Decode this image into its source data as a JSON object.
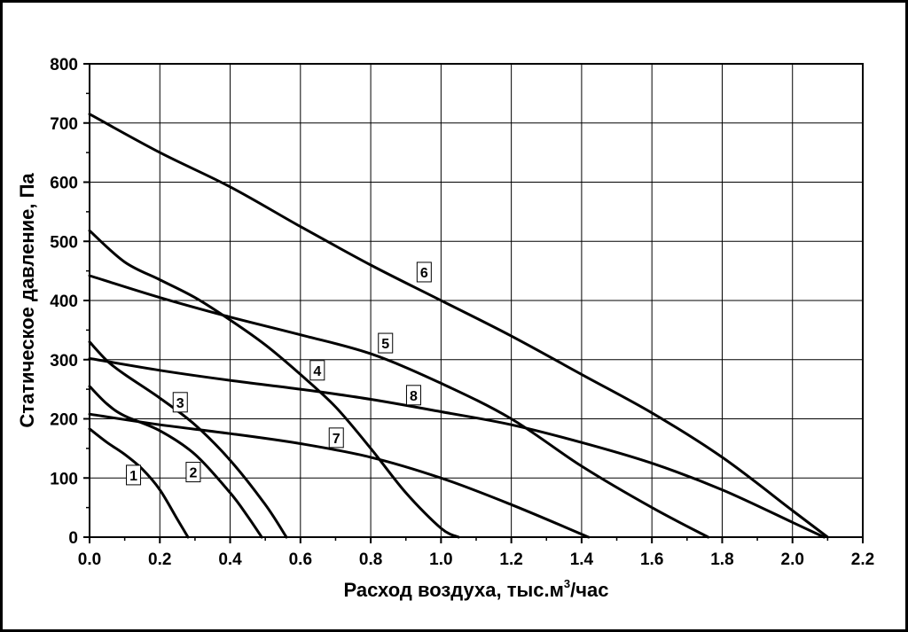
{
  "chart_data": {
    "type": "line",
    "title": "",
    "xlabel": "Расход воздуха, тыс.м³/час",
    "xlabel_main": "Расход воздуха, тыс.м",
    "xlabel_sup": "3",
    "xlabel_tail": "/час",
    "ylabel": "Статическое давление, Па",
    "xlim": [
      0,
      2.2
    ],
    "ylim": [
      0,
      800
    ],
    "xticks": [
      0.0,
      0.2,
      0.4,
      0.6,
      0.8,
      1.0,
      1.2,
      1.4,
      1.6,
      1.8,
      2.0,
      2.2
    ],
    "xtick_labels": [
      "0.0",
      "0.2",
      "0.4",
      "0.6",
      "0.8",
      "1.0",
      "1.2",
      "1.4",
      "1.6",
      "1.8",
      "2.0",
      "2.2"
    ],
    "yticks": [
      0,
      100,
      200,
      300,
      400,
      500,
      600,
      700,
      800
    ],
    "ytick_labels": [
      "0",
      "100",
      "200",
      "300",
      "400",
      "500",
      "600",
      "700",
      "800"
    ],
    "grid": true,
    "legend": "none",
    "series": [
      {
        "name": "1",
        "label_at": [
          0.125,
          105
        ],
        "points": [
          [
            0,
            183
          ],
          [
            0.05,
            160
          ],
          [
            0.1,
            140
          ],
          [
            0.15,
            115
          ],
          [
            0.2,
            80
          ],
          [
            0.25,
            30
          ],
          [
            0.28,
            0
          ]
        ]
      },
      {
        "name": "2",
        "label_at": [
          0.295,
          110
        ],
        "points": [
          [
            0,
            255
          ],
          [
            0.05,
            225
          ],
          [
            0.1,
            205
          ],
          [
            0.2,
            180
          ],
          [
            0.3,
            140
          ],
          [
            0.4,
            75
          ],
          [
            0.45,
            35
          ],
          [
            0.49,
            0
          ]
        ]
      },
      {
        "name": "3",
        "label_at": [
          0.258,
          228
        ],
        "points": [
          [
            0,
            330
          ],
          [
            0.05,
            298
          ],
          [
            0.1,
            275
          ],
          [
            0.2,
            235
          ],
          [
            0.3,
            190
          ],
          [
            0.4,
            130
          ],
          [
            0.5,
            55
          ],
          [
            0.56,
            0
          ]
        ]
      },
      {
        "name": "4",
        "label_at": [
          0.648,
          282
        ],
        "points": [
          [
            0,
            518
          ],
          [
            0.1,
            465
          ],
          [
            0.2,
            435
          ],
          [
            0.3,
            405
          ],
          [
            0.4,
            367
          ],
          [
            0.5,
            325
          ],
          [
            0.6,
            275
          ],
          [
            0.7,
            220
          ],
          [
            0.8,
            150
          ],
          [
            0.9,
            75
          ],
          [
            1.0,
            15
          ],
          [
            1.05,
            0
          ]
        ]
      },
      {
        "name": "5",
        "label_at": [
          0.842,
          328
        ],
        "points": [
          [
            0,
            442
          ],
          [
            0.2,
            405
          ],
          [
            0.4,
            372
          ],
          [
            0.6,
            342
          ],
          [
            0.8,
            310
          ],
          [
            1.0,
            260
          ],
          [
            1.2,
            200
          ],
          [
            1.4,
            120
          ],
          [
            1.6,
            50
          ],
          [
            1.76,
            0
          ]
        ]
      },
      {
        "name": "6",
        "label_at": [
          0.952,
          448
        ],
        "points": [
          [
            0,
            715
          ],
          [
            0.2,
            650
          ],
          [
            0.4,
            592
          ],
          [
            0.6,
            525
          ],
          [
            0.8,
            460
          ],
          [
            1.0,
            400
          ],
          [
            1.2,
            340
          ],
          [
            1.4,
            275
          ],
          [
            1.6,
            210
          ],
          [
            1.8,
            135
          ],
          [
            2.0,
            45
          ],
          [
            2.1,
            0
          ]
        ]
      },
      {
        "name": "7",
        "label_at": [
          0.702,
          168
        ],
        "points": [
          [
            0,
            208
          ],
          [
            0.2,
            190
          ],
          [
            0.4,
            175
          ],
          [
            0.6,
            158
          ],
          [
            0.8,
            135
          ],
          [
            1.0,
            100
          ],
          [
            1.2,
            55
          ],
          [
            1.42,
            0
          ]
        ]
      },
      {
        "name": "8",
        "label_at": [
          0.922,
          240
        ],
        "points": [
          [
            0,
            302
          ],
          [
            0.2,
            282
          ],
          [
            0.4,
            265
          ],
          [
            0.6,
            250
          ],
          [
            0.8,
            233
          ],
          [
            1.0,
            212
          ],
          [
            1.2,
            190
          ],
          [
            1.4,
            160
          ],
          [
            1.6,
            125
          ],
          [
            1.8,
            80
          ],
          [
            2.0,
            25
          ],
          [
            2.09,
            0
          ]
        ]
      }
    ]
  }
}
